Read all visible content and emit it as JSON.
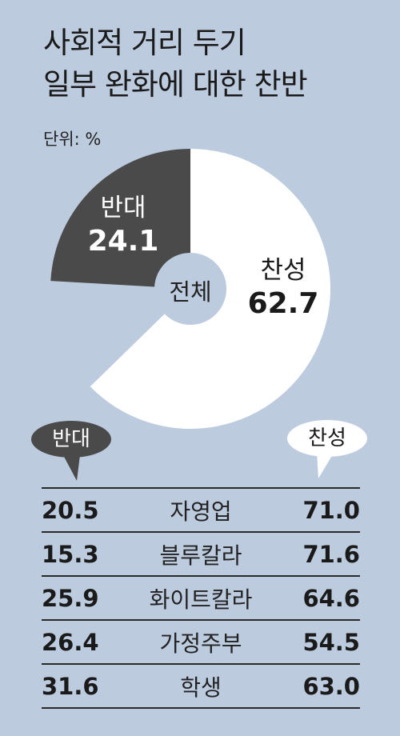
{
  "header": {
    "title_line1": "사회적 거리 두기",
    "title_line2": "일부 완화에 대한 찬반",
    "unit": "단위: %"
  },
  "chart_data": {
    "type": "pie",
    "overall": {
      "center_label": "전체",
      "slices": [
        {
          "name": "반대",
          "value": 24.1,
          "color": "#4a4a4a"
        },
        {
          "name": "찬성",
          "value": 62.7,
          "color": "#ffffff"
        }
      ]
    },
    "table": {
      "type": "table",
      "left_label": "반대",
      "right_label": "찬성",
      "rows": [
        {
          "group": "자영업",
          "oppose": "20.5",
          "favor": "71.0"
        },
        {
          "group": "블루칼라",
          "oppose": "15.3",
          "favor": "71.6"
        },
        {
          "group": "화이트칼라",
          "oppose": "25.9",
          "favor": "64.6"
        },
        {
          "group": "가정주부",
          "oppose": "26.4",
          "favor": "54.5"
        },
        {
          "group": "학생",
          "oppose": "31.6",
          "favor": "63.0"
        }
      ]
    }
  }
}
